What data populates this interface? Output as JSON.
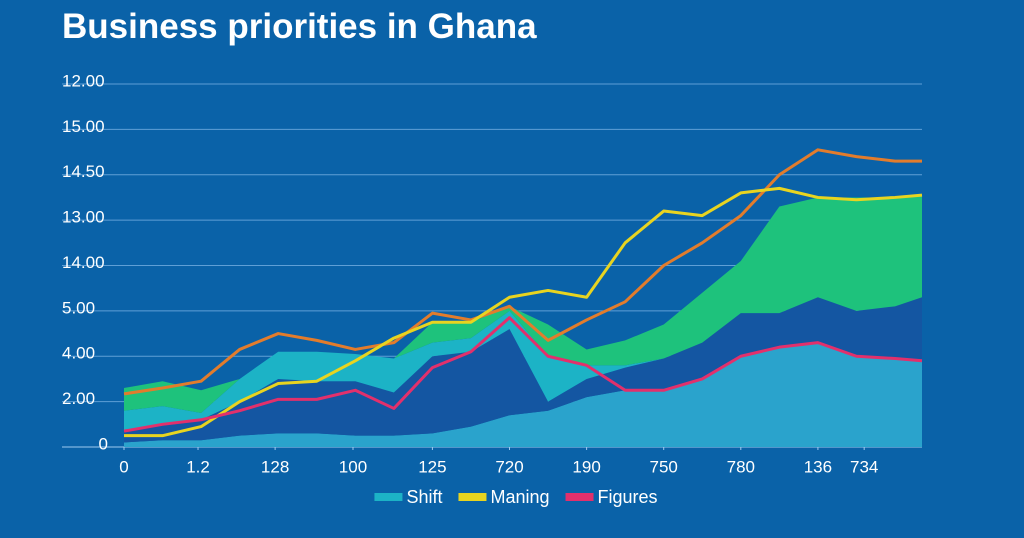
{
  "chart_data": {
    "type": "area",
    "title": "Business priorities in Ghana",
    "x": [
      0,
      0.5,
      1,
      1.5,
      2,
      2.5,
      3,
      3.5,
      4,
      4.5,
      5,
      5.5,
      6,
      6.5,
      7,
      7.5,
      8,
      8.5,
      9,
      9.5,
      10,
      10.35
    ],
    "xlim": [
      0,
      10.35
    ],
    "xticks": [
      0,
      {
        "value": 0.96,
        "label": "1.2"
      },
      {
        "value": 1.96,
        "label": "128"
      },
      {
        "value": 2.97,
        "label": "100"
      },
      {
        "value": 4,
        "label": "125"
      },
      {
        "value": 5,
        "label": "720"
      },
      {
        "value": 6,
        "label": "190"
      },
      {
        "value": 7,
        "label": "750"
      },
      {
        "value": 8,
        "label": "780"
      },
      {
        "value": 9,
        "label": "136"
      },
      {
        "value": 9.6,
        "label": "734"
      }
    ],
    "ylim": [
      0,
      8
    ],
    "yticks": [
      0,
      {
        "value": 1,
        "label": "2.00"
      },
      {
        "value": 2,
        "label": "4.00"
      },
      {
        "value": 3,
        "label": "5.00"
      },
      {
        "value": 4,
        "label": "14.00"
      },
      {
        "value": 5,
        "label": "13.00"
      },
      {
        "value": 6,
        "label": "14.50"
      },
      {
        "value": 7,
        "label": "15.00"
      },
      {
        "value": 8,
        "label": "12.00"
      }
    ],
    "grid": true,
    "legend": "bottom",
    "series": [
      {
        "style": "area",
        "color": "#2aa3cc",
        "values": [
          0.1,
          0.15,
          0.15,
          0.25,
          0.3,
          0.3,
          0.25,
          0.25,
          0.3,
          0.45,
          0.7,
          0.8,
          1.1,
          1.25,
          1.25,
          1.5,
          2.0,
          2.2,
          2.3,
          2.0,
          1.95,
          1.9
        ]
      },
      {
        "style": "area",
        "color": "#1456a2",
        "values": [
          0.25,
          0.35,
          0.45,
          0.75,
          1.2,
          1.15,
          1.2,
          0.95,
          1.7,
          1.65,
          1.9,
          0.2,
          0.4,
          0.5,
          0.7,
          0.8,
          0.95,
          0.75,
          1.0,
          1.0,
          1.15,
          1.4
        ]
      },
      {
        "name": "Shift",
        "style": "area",
        "color": "#1cb3c6",
        "values": [
          0.45,
          0.4,
          0.15,
          0.5,
          0.6,
          0.65,
          0.6,
          0.75,
          0.3,
          0.3,
          0.4,
          1.0,
          0.3,
          0.05,
          0,
          0,
          0,
          0,
          0,
          0,
          0,
          0
        ]
      },
      {
        "style": "area",
        "color": "#1ec27c",
        "values": [
          0.5,
          0.55,
          0.5,
          0,
          0,
          0,
          0,
          0,
          0.45,
          0.35,
          0.1,
          0.7,
          0.35,
          0.55,
          0.75,
          1.1,
          1.15,
          2.35,
          2.2,
          2.5,
          2.4,
          2.25
        ]
      },
      {
        "style": "line",
        "color": "#e27c2c",
        "values": [
          1.17,
          1.3,
          1.45,
          2.15,
          2.5,
          2.35,
          2.15,
          2.3,
          2.95,
          2.8,
          3.1,
          2.35,
          2.8,
          3.2,
          4.0,
          4.5,
          5.1,
          6.0,
          6.55,
          6.4,
          6.3,
          6.3
        ]
      },
      {
        "name": "Maning",
        "style": "line",
        "color": "#e8d420",
        "values": [
          0.25,
          0.25,
          0.45,
          1.0,
          1.4,
          1.45,
          1.9,
          2.4,
          2.75,
          2.75,
          3.3,
          3.45,
          3.3,
          4.5,
          5.2,
          5.1,
          5.6,
          5.7,
          5.5,
          5.45,
          5.5,
          5.55
        ]
      },
      {
        "name": "Figures",
        "style": "line",
        "color": "#e2306c",
        "values": [
          0.35,
          0.5,
          0.6,
          0.8,
          1.05,
          1.05,
          1.25,
          0.85,
          1.75,
          2.1,
          2.85,
          2.0,
          1.8,
          1.25,
          1.25,
          1.5,
          2.0,
          2.2,
          2.3,
          2.0,
          1.95,
          1.9
        ]
      }
    ]
  }
}
